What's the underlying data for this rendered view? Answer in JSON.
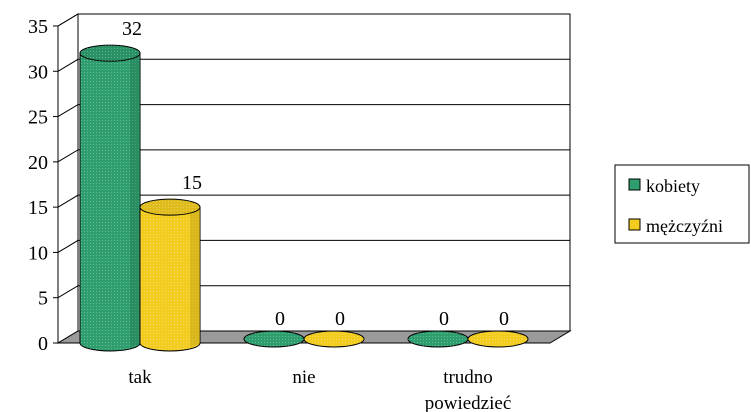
{
  "chart_data": {
    "type": "bar",
    "categories": [
      "tak",
      "nie",
      "trudno powiedzieć"
    ],
    "category_lines": [
      [
        "tak"
      ],
      [
        "nie"
      ],
      [
        "trudno",
        "powiedzieć"
      ]
    ],
    "series": [
      {
        "name": "kobiety",
        "values": [
          32,
          0,
          0
        ],
        "color": "#2e9e6e"
      },
      {
        "name": "mężczyźni",
        "values": [
          15,
          0,
          0
        ],
        "color": "#f2cc1e"
      }
    ],
    "ylim": [
      0,
      35
    ],
    "yticks": [
      0,
      5,
      10,
      15,
      20,
      25,
      30,
      35
    ],
    "data_labels": true,
    "grid": true,
    "legend_position": "right",
    "shape": "cylinder-3d"
  }
}
